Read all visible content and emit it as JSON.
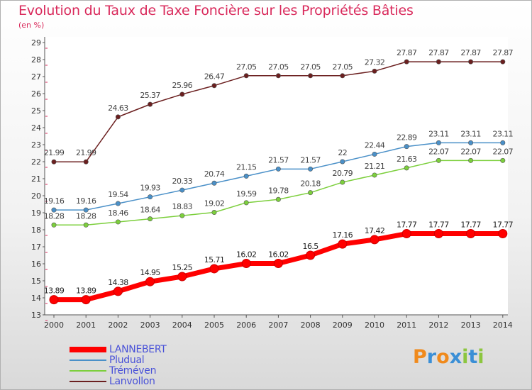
{
  "title": "Evolution du Taux de Taxe Foncière sur les Propriétés Bâties",
  "unit_label": "(en %)",
  "logo": {
    "letters": [
      "P",
      "r",
      "o",
      "x",
      "i",
      "t",
      "i"
    ],
    "colors": [
      "#f08a1c",
      "#3b8fd6",
      "#f08a1c",
      "#3b8fd6",
      "#8cc63f",
      "#3b8fd6",
      "#8cc63f"
    ]
  },
  "chart_data": {
    "type": "line",
    "x": [
      "2000",
      "2001",
      "2002",
      "2003",
      "2004",
      "2005",
      "2006",
      "2007",
      "2008",
      "2009",
      "2010",
      "2011",
      "2012",
      "2013",
      "2014"
    ],
    "ylim": [
      13,
      29
    ],
    "yticks": [
      13,
      14,
      15,
      16,
      17,
      18,
      19,
      20,
      21,
      22,
      23,
      24,
      25,
      26,
      27,
      28,
      29
    ],
    "grid": false,
    "legend_position": "bottom-left",
    "series": [
      {
        "name": "LANNEBERT",
        "color": "#ff0000",
        "values": [
          13.89,
          13.89,
          14.38,
          14.95,
          15.25,
          15.71,
          16.02,
          16.02,
          16.5,
          17.16,
          17.42,
          17.77,
          17.77,
          17.77,
          17.77
        ],
        "labels": [
          "13.89",
          "13.89",
          "14.38",
          "14.95",
          "15.25",
          "15.71",
          "16.02",
          "16.02",
          "16.5",
          "17.16",
          "17.42",
          "17.77",
          "17.77",
          "17.77",
          "17.77"
        ]
      },
      {
        "name": "Pludual",
        "color": "#4a90c8",
        "values": [
          19.16,
          19.16,
          19.54,
          19.93,
          20.33,
          20.74,
          21.15,
          21.57,
          21.57,
          22,
          22.44,
          22.89,
          23.11,
          23.11,
          23.11
        ],
        "labels": [
          "19.16",
          "19.16",
          "19.54",
          "19.93",
          "20.33",
          "20.74",
          "21.15",
          "21.57",
          "21.57",
          "22",
          "22.44",
          "22.89",
          "23.11",
          "23.11",
          "23.11"
        ]
      },
      {
        "name": "Tréméven",
        "color": "#7ccf3c",
        "values": [
          18.28,
          18.28,
          18.46,
          18.64,
          18.83,
          19.02,
          19.59,
          19.78,
          20.18,
          20.79,
          21.21,
          21.63,
          22.07,
          22.07,
          22.07
        ],
        "labels": [
          "18.28",
          "18.28",
          "18.46",
          "18.64",
          "18.83",
          "19.02",
          "19.59",
          "19.78",
          "20.18",
          "20.79",
          "21.21",
          "21.63",
          "22.07",
          "22.07",
          "22.07"
        ]
      },
      {
        "name": "Lanvollon",
        "color": "#6b1f1f",
        "values": [
          21.99,
          21.99,
          24.63,
          25.37,
          25.96,
          26.47,
          27.05,
          27.05,
          27.05,
          27.05,
          27.32,
          27.87,
          27.87,
          27.87,
          27.87
        ],
        "labels": [
          "21.99",
          "21.99",
          "24.63",
          "25.37",
          "25.96",
          "26.47",
          "27.05",
          "27.05",
          "27.05",
          "27.05",
          "27.32",
          "27.87",
          "27.87",
          "27.87",
          "27.87"
        ]
      }
    ]
  }
}
